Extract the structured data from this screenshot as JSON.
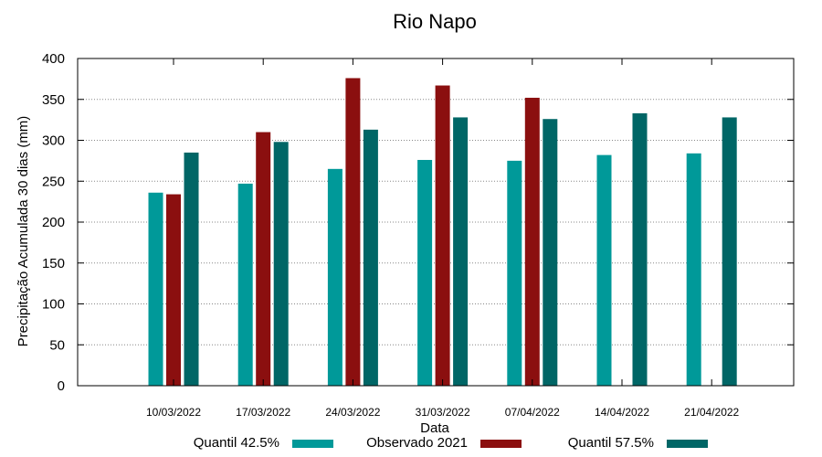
{
  "chart_data": {
    "type": "bar",
    "title": "Rio Napo",
    "xlabel": "Data",
    "ylabel": "Precipitação Acumulada 30 dias (mm)",
    "ylim": [
      0,
      400
    ],
    "yticks": [
      0,
      50,
      100,
      150,
      200,
      250,
      300,
      350,
      400
    ],
    "grid": true,
    "legend_position": "bottom",
    "categories": [
      "10/03/2022",
      "17/03/2022",
      "24/03/2022",
      "31/03/2022",
      "07/04/2022",
      "14/04/2022",
      "21/04/2022"
    ],
    "series": [
      {
        "name": "Quantil 42.5%",
        "color": "#009999",
        "values": [
          236,
          247,
          265,
          276,
          275,
          282,
          284
        ]
      },
      {
        "name": "Observado 2021",
        "color": "#8b0f0f",
        "values": [
          234,
          310,
          376,
          367,
          352,
          null,
          null
        ]
      },
      {
        "name": "Quantil 57.5%",
        "color": "#006666",
        "values": [
          285,
          298,
          313,
          328,
          326,
          333,
          328
        ]
      }
    ]
  }
}
